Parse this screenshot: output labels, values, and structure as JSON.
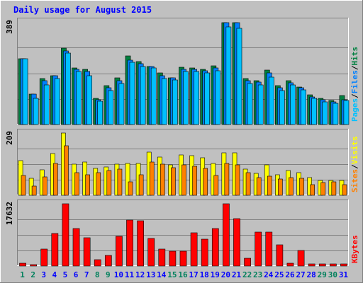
{
  "chart_data": {
    "type": "bar",
    "title": "Daily usage for August 2015",
    "categories": [
      "1",
      "2",
      "3",
      "4",
      "5",
      "6",
      "7",
      "8",
      "9",
      "10",
      "11",
      "12",
      "13",
      "14",
      "15",
      "16",
      "17",
      "18",
      "19",
      "20",
      "21",
      "22",
      "23",
      "24",
      "25",
      "26",
      "27",
      "28",
      "29",
      "30",
      "31"
    ],
    "weekend_days": [
      "1",
      "2",
      "8",
      "9",
      "15",
      "16",
      "22",
      "23",
      "29",
      "30"
    ],
    "panels": [
      {
        "id": "hits_files_pages",
        "ymax_label": "389",
        "ymax": 389,
        "right_labels": [
          "Pages",
          "/",
          "Files",
          "/",
          "Hits"
        ],
        "series": [
          {
            "name": "Hits",
            "color": "#008040",
            "values": [
              250,
              115,
              175,
              185,
              290,
              215,
              208,
              100,
              147,
              178,
              260,
              238,
              219,
              196,
              176,
              216,
              215,
              210,
              222,
              387,
              385,
              174,
              165,
              206,
              147,
              167,
              143,
              114,
              100,
              92,
              109
            ]
          },
          {
            "name": "Files",
            "color": "#0080ff",
            "values": [
              250,
              115,
              165,
              185,
              280,
              210,
              200,
              95,
              140,
              165,
              245,
              232,
              219,
              185,
              176,
              210,
              210,
              205,
              215,
              387,
              385,
              165,
              160,
              195,
              140,
              158,
              140,
              105,
              94,
              85,
              95
            ]
          },
          {
            "name": "Pages",
            "color": "#00c0ff",
            "values": [
              250,
              100,
              150,
              175,
              270,
              200,
              185,
              88,
              130,
              155,
              235,
              220,
              215,
              175,
              170,
              200,
              200,
              195,
              205,
              369,
              366,
              155,
              150,
              180,
              130,
              150,
              132,
              100,
              85,
              80,
              90
            ]
          }
        ]
      },
      {
        "id": "visits_sites",
        "ymax_label": "209",
        "ymax": 209,
        "right_labels": [
          "Sites",
          "/",
          "Visits"
        ],
        "series": [
          {
            "name": "Visits",
            "color": "#ffff00",
            "values": [
              116,
              56,
              85,
              140,
              209,
              105,
              112,
              90,
              94,
              104,
              106,
              108,
              146,
              129,
              103,
              135,
              133,
              125,
              107,
              142,
              143,
              89,
              74,
              101,
              70,
              83,
              75,
              60,
              50,
              50,
              51
            ]
          },
          {
            "name": "Sites",
            "color": "#ff8000",
            "values": [
              66,
              32,
              61,
              107,
              166,
              75,
              70,
              75,
              82,
              89,
              44,
              70,
              112,
              104,
              92,
              101,
              97,
              91,
              67,
              106,
              101,
              75,
              60,
              64,
              55,
              60,
              56,
              36,
              43,
              45,
              36
            ]
          }
        ]
      },
      {
        "id": "kbytes",
        "ymax_label": "17632",
        "ymax": 17632,
        "right_labels": [
          "KBytes"
        ],
        "series": [
          {
            "name": "KBytes",
            "color": "#ff0000",
            "values": [
              900,
              500,
              4900,
              9200,
              17632,
              10700,
              8100,
              1900,
              3000,
              8500,
              13100,
              12900,
              7800,
              4800,
              4200,
              4300,
              9400,
              7600,
              10700,
              17600,
              13400,
              2200,
              9700,
              9700,
              6000,
              800,
              4400,
              700,
              700,
              600,
              600
            ]
          }
        ]
      }
    ]
  },
  "colors": {
    "background": "#c0c0c0",
    "plot_bg": "#c0c0c0",
    "title": "#0000ff",
    "axis_text": "#000000",
    "weekday_label": "#0000ff",
    "weekend_label": "#00805c",
    "pages_label": "#00c0ff",
    "files_label": "#0080ff",
    "hits_label": "#008040",
    "sites_label": "#ff8000",
    "visits_label": "#ffff00",
    "kbytes_label": "#ff0000",
    "grid": "#808080"
  }
}
